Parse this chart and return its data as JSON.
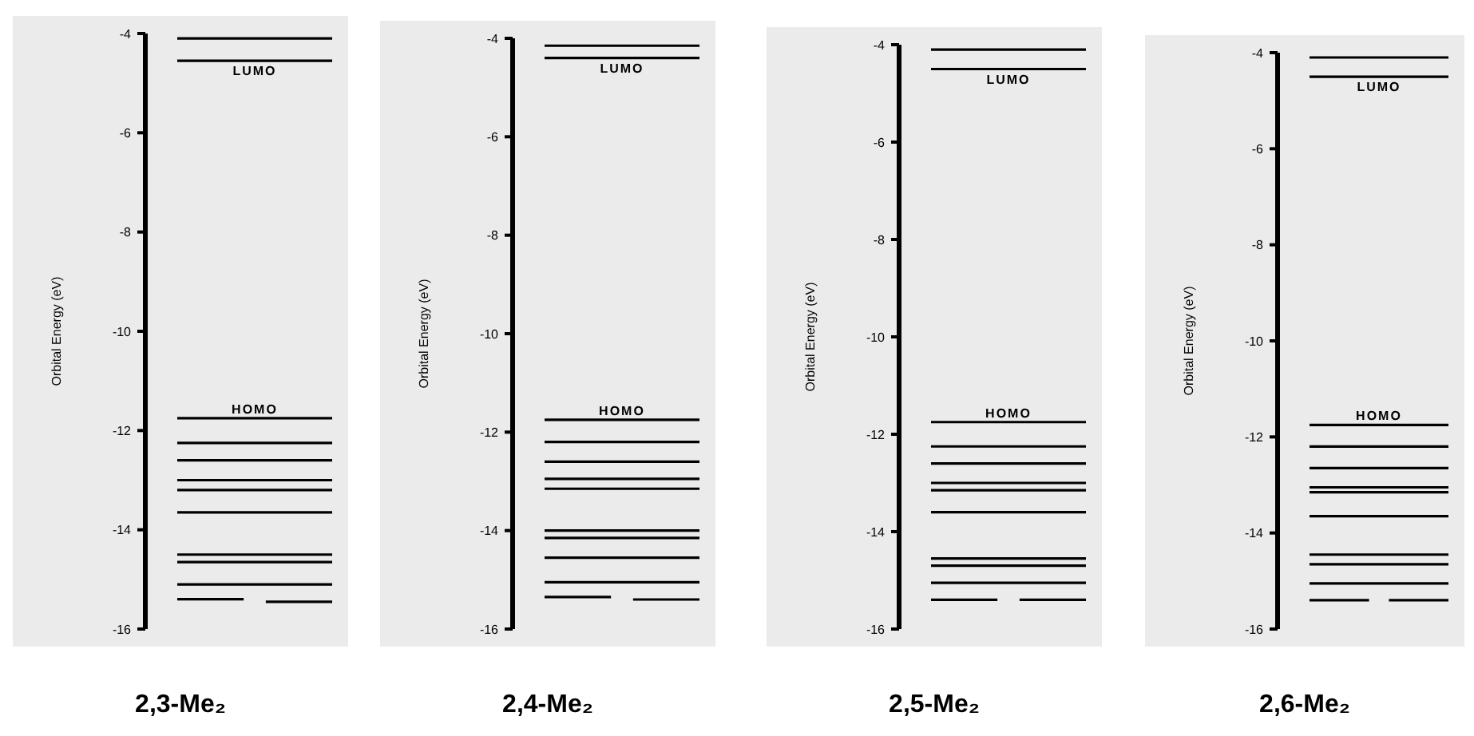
{
  "chart_data": [
    {
      "type": "line",
      "ylabel": "Orbital Energy (eV)",
      "xlabel": "2,3-Me₂",
      "ylim": [
        -16,
        -4
      ],
      "yticks": [
        -4,
        -6,
        -8,
        -10,
        -12,
        -14,
        -16
      ],
      "tick_labels": "y",
      "color": "#000000",
      "categories": [
        null,
        null,
        null,
        null,
        null,
        null,
        null,
        null
      ],
      "series": [
        {
          "values": [
            -4.1,
            -4.1,
            -4.1,
            -4.1,
            -4.1,
            -4.1,
            -4.1,
            -4.1
          ]
        },
        {
          "name": "LUMO",
          "values": [
            -4.55,
            -4.55,
            -4.55,
            -4.55,
            -4.55,
            -4.55,
            -4.55,
            -4.55
          ]
        },
        {
          "name": "HOMO",
          "values": [
            -11.75,
            -11.75,
            -11.75,
            -11.75,
            -11.75,
            -11.75,
            -11.75,
            -11.75
          ]
        },
        {
          "values": [
            -12.25,
            -12.25,
            -12.25,
            -12.25,
            -12.25,
            -12.25,
            -12.25,
            -12.25
          ]
        },
        {
          "values": [
            -12.6,
            -12.6,
            -12.6,
            -12.6,
            -12.6,
            -12.6,
            -12.6,
            -12.6
          ]
        },
        {
          "values": [
            -13.0,
            -13.0,
            -13.0,
            -13.0,
            -13.0,
            -13.0,
            -13.0,
            -13.0
          ]
        },
        {
          "values": [
            -13.2,
            -13.2,
            -13.2,
            -13.2,
            -13.2,
            -13.2,
            -13.2,
            -13.2
          ]
        },
        {
          "values": [
            -13.65,
            -13.65,
            -13.65,
            -13.65,
            -13.65,
            -13.65,
            -13.65,
            -13.65
          ]
        },
        {
          "values": [
            -14.5,
            -14.5,
            -14.5,
            -14.5,
            -14.5,
            -14.5,
            -14.5,
            -14.5
          ]
        },
        {
          "values": [
            -14.65,
            -14.65,
            -14.65,
            -14.65,
            -14.65,
            -14.65,
            -14.65,
            -14.65
          ]
        },
        {
          "values": [
            -15.1,
            -15.1,
            -15.1,
            -15.1,
            -15.1,
            -15.1,
            -15.1,
            -15.1
          ]
        },
        {
          "values": [
            -15.4,
            -15.4,
            -15.4,
            -15.4,
            null,
            null,
            null,
            null
          ]
        },
        {
          "values": [
            null,
            null,
            null,
            null,
            -15.45,
            -15.45,
            -15.45,
            -15.45
          ]
        }
      ]
    },
    {
      "type": "line",
      "ylabel": "Orbital Energy (eV)",
      "xlabel": "2,4-Me₂",
      "ylim": [
        -16,
        -4
      ],
      "yticks": [
        -4,
        -6,
        -8,
        -10,
        -12,
        -14,
        -16
      ],
      "tick_labels": "y",
      "color": "#000000",
      "categories": [
        null,
        null,
        null,
        null,
        null,
        null,
        null,
        null
      ],
      "series": [
        {
          "values": [
            -4.15,
            -4.15,
            -4.15,
            -4.15,
            -4.15,
            -4.15,
            -4.15,
            -4.15
          ]
        },
        {
          "name": "LUMO",
          "values": [
            -4.4,
            -4.4,
            -4.4,
            -4.4,
            -4.4,
            -4.4,
            -4.4,
            -4.4
          ]
        },
        {
          "name": "HOMO",
          "values": [
            -11.75,
            -11.75,
            -11.75,
            -11.75,
            -11.75,
            -11.75,
            -11.75,
            -11.75
          ]
        },
        {
          "values": [
            -12.2,
            -12.2,
            -12.2,
            -12.2,
            -12.2,
            -12.2,
            -12.2,
            -12.2
          ]
        },
        {
          "values": [
            -12.6,
            -12.6,
            -12.6,
            -12.6,
            -12.6,
            -12.6,
            -12.6,
            -12.6
          ]
        },
        {
          "values": [
            -12.95,
            -12.95,
            -12.95,
            -12.95,
            -12.95,
            -12.95,
            -12.95,
            -12.95
          ]
        },
        {
          "values": [
            -13.15,
            -13.15,
            -13.15,
            -13.15,
            -13.15,
            -13.15,
            -13.15,
            -13.15
          ]
        },
        {
          "values": [
            -14.0,
            -14.0,
            -14.0,
            -14.0,
            -14.0,
            -14.0,
            -14.0,
            -14.0
          ]
        },
        {
          "values": [
            -14.15,
            -14.15,
            -14.15,
            -14.15,
            -14.15,
            -14.15,
            -14.15,
            -14.15
          ]
        },
        {
          "values": [
            -14.55,
            -14.55,
            -14.55,
            -14.55,
            -14.55,
            -14.55,
            -14.55,
            -14.55
          ]
        },
        {
          "values": [
            -15.05,
            -15.05,
            -15.05,
            -15.05,
            -15.05,
            -15.05,
            -15.05,
            -15.05
          ]
        },
        {
          "values": [
            -15.35,
            -15.35,
            -15.35,
            -15.35,
            null,
            null,
            null,
            null
          ]
        },
        {
          "values": [
            null,
            null,
            null,
            null,
            -15.4,
            -15.4,
            -15.4,
            -15.4
          ]
        }
      ]
    },
    {
      "type": "line",
      "ylabel": "Orbital Energy (eV)",
      "xlabel": "2,5-Me₂",
      "ylim": [
        -16,
        -4
      ],
      "yticks": [
        -4,
        -6,
        -8,
        -10,
        -12,
        -14,
        -16
      ],
      "tick_labels": "y",
      "color": "#000000",
      "categories": [
        null,
        null,
        null,
        null,
        null,
        null,
        null,
        null
      ],
      "series": [
        {
          "values": [
            -4.1,
            -4.1,
            -4.1,
            -4.1,
            -4.1,
            -4.1,
            -4.1,
            -4.1
          ]
        },
        {
          "name": "LUMO",
          "values": [
            -4.5,
            -4.5,
            -4.5,
            -4.5,
            -4.5,
            -4.5,
            -4.5,
            -4.5
          ]
        },
        {
          "name": "HOMO",
          "values": [
            -11.75,
            -11.75,
            -11.75,
            -11.75,
            -11.75,
            -11.75,
            -11.75,
            -11.75
          ]
        },
        {
          "values": [
            -12.25,
            -12.25,
            -12.25,
            -12.25,
            -12.25,
            -12.25,
            -12.25,
            -12.25
          ]
        },
        {
          "values": [
            -12.6,
            -12.6,
            -12.6,
            -12.6,
            -12.6,
            -12.6,
            -12.6,
            -12.6
          ]
        },
        {
          "values": [
            -13.0,
            -13.0,
            -13.0,
            -13.0,
            -13.0,
            -13.0,
            -13.0,
            -13.0
          ]
        },
        {
          "values": [
            -13.15,
            -13.15,
            -13.15,
            -13.15,
            -13.15,
            -13.15,
            -13.15,
            -13.15
          ]
        },
        {
          "values": [
            -13.6,
            -13.6,
            -13.6,
            -13.6,
            -13.6,
            -13.6,
            -13.6,
            -13.6
          ]
        },
        {
          "values": [
            -14.55,
            -14.55,
            -14.55,
            -14.55,
            -14.55,
            -14.55,
            -14.55,
            -14.55
          ]
        },
        {
          "values": [
            -14.7,
            -14.7,
            -14.7,
            -14.7,
            -14.7,
            -14.7,
            -14.7,
            -14.7
          ]
        },
        {
          "values": [
            -15.05,
            -15.05,
            -15.05,
            -15.05,
            -15.05,
            -15.05,
            -15.05,
            -15.05
          ]
        },
        {
          "values": [
            -15.4,
            -15.4,
            -15.4,
            -15.4,
            null,
            null,
            null,
            null
          ]
        },
        {
          "values": [
            null,
            null,
            null,
            null,
            -15.4,
            -15.4,
            -15.4,
            -15.4
          ]
        }
      ]
    },
    {
      "type": "line",
      "ylabel": "Orbital Energy (eV)",
      "xlabel": "2,6-Me₂",
      "ylim": [
        -16,
        -4
      ],
      "yticks": [
        -4,
        -6,
        -8,
        -10,
        -12,
        -14,
        -16
      ],
      "tick_labels": "y",
      "color": "#000000",
      "categories": [
        null,
        null,
        null,
        null,
        null,
        null,
        null,
        null
      ],
      "series": [
        {
          "values": [
            -4.1,
            -4.1,
            -4.1,
            -4.1,
            -4.1,
            -4.1,
            -4.1,
            -4.1
          ]
        },
        {
          "name": "LUMO",
          "values": [
            -4.5,
            -4.5,
            -4.5,
            -4.5,
            -4.5,
            -4.5,
            -4.5,
            -4.5
          ]
        },
        {
          "name": "HOMO",
          "values": [
            -11.75,
            -11.75,
            -11.75,
            -11.75,
            -11.75,
            -11.75,
            -11.75,
            -11.75
          ]
        },
        {
          "values": [
            -12.2,
            -12.2,
            -12.2,
            -12.2,
            -12.2,
            -12.2,
            -12.2,
            -12.2
          ]
        },
        {
          "values": [
            -12.65,
            -12.65,
            -12.65,
            -12.65,
            -12.65,
            -12.65,
            -12.65,
            -12.65
          ]
        },
        {
          "values": [
            -13.05,
            -13.05,
            -13.05,
            -13.05,
            -13.05,
            -13.05,
            -13.05,
            -13.05
          ]
        },
        {
          "values": [
            -13.15,
            -13.15,
            -13.15,
            -13.15,
            -13.15,
            -13.15,
            -13.15,
            -13.15
          ]
        },
        {
          "values": [
            -13.65,
            -13.65,
            -13.65,
            -13.65,
            -13.65,
            -13.65,
            -13.65,
            -13.65
          ]
        },
        {
          "values": [
            -14.45,
            -14.45,
            -14.45,
            -14.45,
            -14.45,
            -14.45,
            -14.45,
            -14.45
          ]
        },
        {
          "values": [
            -14.65,
            -14.65,
            -14.65,
            -14.65,
            -14.65,
            -14.65,
            -14.65,
            -14.65
          ]
        },
        {
          "values": [
            -15.05,
            -15.05,
            -15.05,
            -15.05,
            -15.05,
            -15.05,
            -15.05,
            -15.05
          ]
        },
        {
          "values": [
            -15.4,
            -15.4,
            -15.4,
            -15.4,
            null,
            null,
            null,
            null
          ]
        },
        {
          "values": [
            null,
            null,
            null,
            null,
            -15.4,
            -15.4,
            -15.4,
            -15.4
          ]
        }
      ]
    }
  ]
}
